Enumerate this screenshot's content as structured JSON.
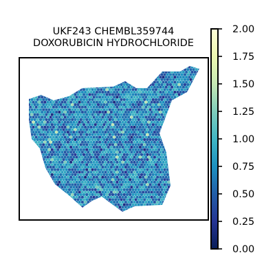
{
  "chart_data": {
    "type": "heatmap",
    "title_lines": [
      "UKF243 CHEMBL359744",
      "DOXORUBICIN HYDROCHLORIDE"
    ],
    "xlabel": "",
    "ylabel": "",
    "grid": false,
    "colormap": "YlGnBu_r",
    "colormap_stops": [
      "#081d58",
      "#253494",
      "#225ea8",
      "#1d91c0",
      "#41b6c4",
      "#7fcdbb",
      "#c7e9b4",
      "#edf8b1",
      "#ffffd9"
    ],
    "colorbar": {
      "range": [
        0.0,
        2.0
      ],
      "ticks": [
        0.0,
        0.25,
        0.5,
        0.75,
        1.0,
        1.25,
        1.5,
        1.75,
        2.0
      ],
      "tick_labels": [
        "0.00",
        "0.25",
        "0.50",
        "0.75",
        "1.00",
        "1.25",
        "1.50",
        "1.75",
        "2.00"
      ],
      "placement": "right"
    },
    "value_summary": {
      "typical_range": [
        0.4,
        1.0
      ],
      "max_observed": 1.5
    }
  }
}
